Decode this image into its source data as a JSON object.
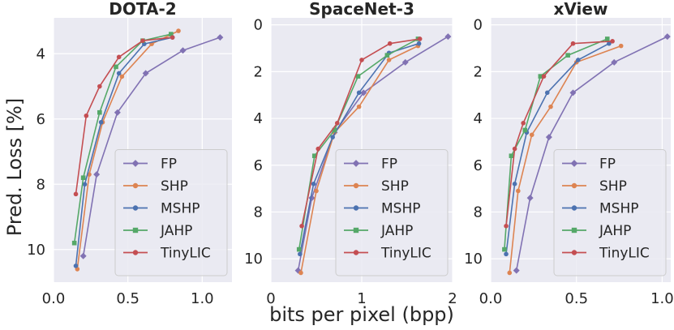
{
  "figure": {
    "ylabel": "Pred. Loss [%]",
    "xlabel": "bits per pixel (bpp)"
  },
  "colors": {
    "FP": "#8172b3",
    "SHP": "#dd8452",
    "MSHP": "#4c72b0",
    "JAHP": "#55a868",
    "TinyLIC": "#c44e52",
    "plot_bg": "#eaeaf2",
    "grid": "#ffffff"
  },
  "chart_data": [
    {
      "type": "line",
      "title": "DOTA-2",
      "xlim": [
        0.0,
        1.2
      ],
      "ylim": [
        11.0,
        2.9
      ],
      "y_inverted": true,
      "xticks": [
        "0.0",
        "0.5",
        "1.0"
      ],
      "yticks": [
        "4",
        "6",
        "8",
        "10"
      ],
      "xtick_values": [
        0.0,
        0.5,
        1.0
      ],
      "ytick_values": [
        4,
        6,
        8,
        10
      ],
      "legend": [
        "FP",
        "SHP",
        "MSHP",
        "JAHP",
        "TinyLIC"
      ],
      "legend_position": "lower-right",
      "series": [
        {
          "name": "FP",
          "x": [
            0.2,
            0.29,
            0.43,
            0.62,
            0.87,
            1.12
          ],
          "y": [
            10.2,
            7.7,
            5.8,
            4.6,
            3.9,
            3.5
          ]
        },
        {
          "name": "SHP",
          "x": [
            0.16,
            0.24,
            0.33,
            0.46,
            0.66,
            0.84
          ],
          "y": [
            10.6,
            7.7,
            6.1,
            4.7,
            3.7,
            3.3
          ]
        },
        {
          "name": "MSHP",
          "x": [
            0.15,
            0.21,
            0.32,
            0.44,
            0.61,
            0.8
          ],
          "y": [
            10.5,
            8.0,
            6.1,
            4.6,
            3.7,
            3.5
          ]
        },
        {
          "name": "JAHP",
          "x": [
            0.14,
            0.2,
            0.31,
            0.42,
            0.6,
            0.79
          ],
          "y": [
            9.8,
            7.8,
            5.8,
            4.4,
            3.6,
            3.4
          ]
        },
        {
          "name": "TinyLIC",
          "x": [
            0.15,
            0.22,
            0.31,
            0.44,
            0.6,
            0.8
          ],
          "y": [
            8.3,
            5.9,
            5.0,
            4.1,
            3.6,
            3.5
          ]
        }
      ]
    },
    {
      "type": "line",
      "title": "SpaceNet-3",
      "xlim": [
        0.0,
        2.0
      ],
      "ylim": [
        11.0,
        -0.3
      ],
      "y_inverted": true,
      "xticks": [
        "0",
        "1",
        "2"
      ],
      "yticks": [
        "0",
        "2",
        "4",
        "6",
        "8",
        "10"
      ],
      "xtick_values": [
        0,
        1,
        2
      ],
      "ytick_values": [
        0,
        2,
        4,
        6,
        8,
        10
      ],
      "legend": [
        "FP",
        "SHP",
        "MSHP",
        "JAHP",
        "TinyLIC"
      ],
      "legend_position": "lower-right",
      "series": [
        {
          "name": "FP",
          "x": [
            0.3,
            0.45,
            0.7,
            1.02,
            1.48,
            1.95
          ],
          "y": [
            10.5,
            7.4,
            4.6,
            2.9,
            1.6,
            0.5
          ]
        },
        {
          "name": "SHP",
          "x": [
            0.33,
            0.5,
            0.7,
            0.97,
            1.3,
            1.62
          ],
          "y": [
            10.6,
            7.1,
            4.6,
            3.5,
            1.5,
            0.9
          ]
        },
        {
          "name": "MSHP",
          "x": [
            0.32,
            0.47,
            0.68,
            0.97,
            1.3,
            1.63
          ],
          "y": [
            9.8,
            6.8,
            4.8,
            2.9,
            1.2,
            0.8
          ]
        },
        {
          "name": "JAHP",
          "x": [
            0.31,
            0.48,
            0.7,
            0.96,
            1.28,
            1.62
          ],
          "y": [
            9.6,
            5.6,
            4.5,
            2.2,
            1.3,
            0.6
          ]
        },
        {
          "name": "TinyLIC",
          "x": [
            0.34,
            0.52,
            0.73,
            1.0,
            1.31,
            1.64
          ],
          "y": [
            8.6,
            5.3,
            4.2,
            1.5,
            0.8,
            0.6
          ]
        }
      ]
    },
    {
      "type": "line",
      "title": "xView",
      "xlim": [
        0.0,
        1.05
      ],
      "ylim": [
        11.0,
        -0.3
      ],
      "y_inverted": true,
      "xticks": [
        "0.0",
        "0.5",
        "1.0"
      ],
      "yticks": [
        "0",
        "2",
        "4",
        "6",
        "8",
        "10"
      ],
      "xtick_values": [
        0.0,
        0.5,
        1.0
      ],
      "ytick_values": [
        0,
        2,
        4,
        6,
        8,
        10
      ],
      "legend": [
        "FP",
        "SHP",
        "MSHP",
        "JAHP",
        "TinyLIC"
      ],
      "legend_position": "lower-right",
      "series": [
        {
          "name": "FP",
          "x": [
            0.15,
            0.23,
            0.34,
            0.48,
            0.72,
            1.03
          ],
          "y": [
            10.5,
            7.4,
            4.8,
            2.9,
            1.6,
            0.5
          ]
        },
        {
          "name": "SHP",
          "x": [
            0.11,
            0.16,
            0.24,
            0.35,
            0.5,
            0.76
          ],
          "y": [
            10.6,
            7.1,
            4.7,
            3.5,
            1.6,
            0.9
          ]
        },
        {
          "name": "MSHP",
          "x": [
            0.09,
            0.14,
            0.21,
            0.33,
            0.51,
            0.69
          ],
          "y": [
            9.8,
            6.8,
            4.6,
            2.9,
            1.5,
            0.8
          ]
        },
        {
          "name": "JAHP",
          "x": [
            0.08,
            0.12,
            0.2,
            0.29,
            0.45,
            0.68
          ],
          "y": [
            9.6,
            5.6,
            4.5,
            2.2,
            1.3,
            0.6
          ]
        },
        {
          "name": "TinyLIC",
          "x": [
            0.09,
            0.14,
            0.19,
            0.31,
            0.48,
            0.71
          ],
          "y": [
            8.6,
            5.3,
            4.2,
            2.2,
            0.8,
            0.7
          ]
        }
      ]
    }
  ]
}
